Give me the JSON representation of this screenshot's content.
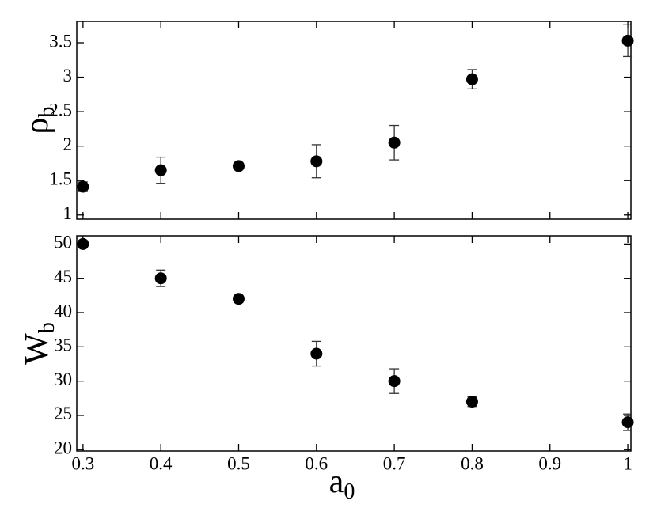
{
  "chart_data": [
    {
      "type": "scatter",
      "ylabel": "ρ",
      "ylabel_subscript": "b",
      "x": [
        0.3,
        0.4,
        0.5,
        0.6,
        0.7,
        0.8,
        1
      ],
      "values": [
        1.41,
        1.65,
        1.71,
        1.78,
        2.05,
        2.97,
        3.53
      ],
      "errors": [
        0.07,
        0.19,
        0.05,
        0.24,
        0.25,
        0.14,
        0.23
      ],
      "color": "#000000",
      "xlim": [
        0.292,
        1.004
      ],
      "xticks": [
        0.3,
        0.4,
        0.5,
        0.6,
        0.7,
        0.8,
        0.9,
        1
      ],
      "ylim": [
        0.94,
        3.81
      ],
      "yticks": [
        1,
        1.5,
        2,
        2.5,
        3,
        3.5
      ]
    },
    {
      "type": "scatter",
      "ylabel": "W",
      "ylabel_subscript": "b",
      "xlabel": "a",
      "xlabel_subscript": "0",
      "x": [
        0.3,
        0.4,
        0.5,
        0.6,
        0.7,
        0.8,
        1
      ],
      "values": [
        50,
        45,
        42,
        34,
        30,
        27,
        24
      ],
      "errors": [
        0.5,
        1.2,
        0.5,
        1.8,
        1.8,
        0.7,
        1.2
      ],
      "color": "#000000",
      "xlim": [
        0.292,
        1.004
      ],
      "xticks": [
        0.3,
        0.4,
        0.5,
        0.6,
        0.7,
        0.8,
        0.9,
        1
      ],
      "ylim": [
        19.8,
        51.2
      ],
      "yticks": [
        20,
        25,
        30,
        35,
        40,
        45,
        50
      ]
    }
  ]
}
